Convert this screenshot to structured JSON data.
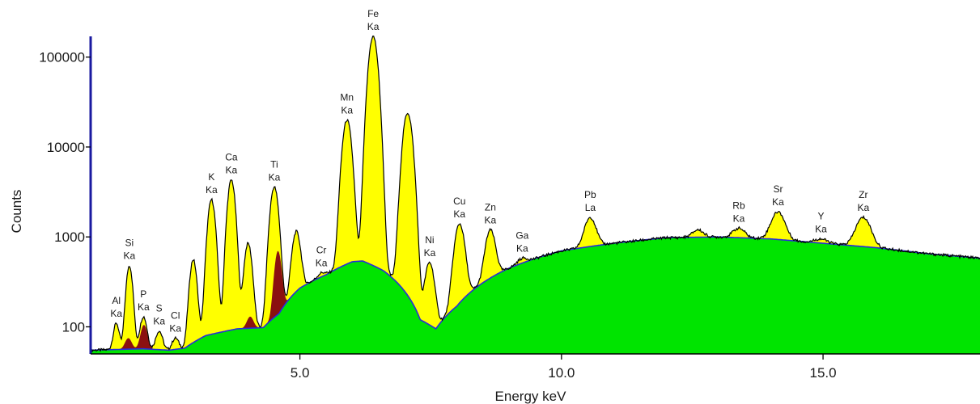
{
  "chart_data": {
    "type": "area",
    "title": "",
    "xlabel": "Energy keV",
    "ylabel": "Counts",
    "xlim": [
      1.0,
      18.0
    ],
    "ylim": [
      50,
      170000
    ],
    "yscale": "log",
    "grid": false,
    "x_ticks": [
      {
        "value": 5.0,
        "label": "5.0"
      },
      {
        "value": 10.0,
        "label": "10.0"
      },
      {
        "value": 15.0,
        "label": "15.0"
      }
    ],
    "y_ticks": [
      {
        "value": 100,
        "label": "100"
      },
      {
        "value": 1000,
        "label": "1000"
      },
      {
        "value": 10000,
        "label": "10000"
      },
      {
        "value": 100000,
        "label": "100000"
      }
    ],
    "colors": {
      "background_fill": "#00e400",
      "peak_fill": "#ffff00",
      "overlap_fill": "#8b1010",
      "spectrum_line": "#000000",
      "background_line": "#2a2adc",
      "axis": "#000000",
      "left_axis_accent": "#1a1aa0"
    },
    "background_points": [
      [
        1.0,
        55
      ],
      [
        1.5,
        56
      ],
      [
        2.0,
        57
      ],
      [
        2.5,
        55
      ],
      [
        2.8,
        58
      ],
      [
        3.2,
        80
      ],
      [
        3.8,
        95
      ],
      [
        4.3,
        98
      ],
      [
        4.6,
        140
      ],
      [
        5.0,
        270
      ],
      [
        5.5,
        380
      ],
      [
        6.0,
        530
      ],
      [
        6.2,
        540
      ],
      [
        6.6,
        420
      ],
      [
        7.0,
        250
      ],
      [
        7.3,
        120
      ],
      [
        7.6,
        95
      ],
      [
        8.0,
        170
      ],
      [
        9.0,
        450
      ],
      [
        10.0,
        700
      ],
      [
        11.0,
        850
      ],
      [
        12.0,
        980
      ],
      [
        13.0,
        1000
      ],
      [
        14.0,
        950
      ],
      [
        15.0,
        850
      ],
      [
        16.0,
        760
      ],
      [
        17.0,
        650
      ],
      [
        18.0,
        580
      ]
    ],
    "peaks": [
      {
        "element": "Al",
        "line": "Ka",
        "energy": 1.49,
        "counts": 110,
        "width": 0.05
      },
      {
        "element": "Si",
        "line": "Ka",
        "energy": 1.74,
        "counts": 480,
        "width": 0.055
      },
      {
        "element": "P",
        "line": "Ka",
        "energy": 2.01,
        "counts": 130,
        "width": 0.06
      },
      {
        "element": "S",
        "line": "Ka",
        "energy": 2.31,
        "counts": 90,
        "width": 0.06
      },
      {
        "element": "Cl",
        "line": "Ka",
        "energy": 2.62,
        "counts": 75,
        "width": 0.06
      },
      {
        "element": "",
        "line": "",
        "energy": 2.96,
        "counts": 560,
        "width": 0.06
      },
      {
        "element": "K",
        "line": "Ka",
        "energy": 3.31,
        "counts": 2600,
        "width": 0.065
      },
      {
        "element": "Ca",
        "line": "Ka",
        "energy": 3.69,
        "counts": 4300,
        "width": 0.065
      },
      {
        "element": "",
        "line": "",
        "energy": 4.01,
        "counts": 850,
        "width": 0.065
      },
      {
        "element": "Ti",
        "line": "Ka",
        "energy": 4.51,
        "counts": 3600,
        "width": 0.07
      },
      {
        "element": "",
        "line": "",
        "energy": 4.93,
        "counts": 1150,
        "width": 0.07
      },
      {
        "element": "Cr",
        "line": "Ka",
        "energy": 5.41,
        "counts": 400,
        "width": 0.07
      },
      {
        "element": "Mn",
        "line": "Ka",
        "energy": 5.9,
        "counts": 20000,
        "width": 0.075
      },
      {
        "element": "Fe",
        "line": "Ka",
        "energy": 6.4,
        "counts": 170000,
        "width": 0.075
      },
      {
        "element": "",
        "line": "",
        "energy": 7.06,
        "counts": 24000,
        "width": 0.08
      },
      {
        "element": "Ni",
        "line": "Ka",
        "energy": 7.48,
        "counts": 520,
        "width": 0.08
      },
      {
        "element": "Cu",
        "line": "Ka",
        "energy": 8.05,
        "counts": 1400,
        "width": 0.085
      },
      {
        "element": "Zn",
        "line": "Ka",
        "energy": 8.64,
        "counts": 1200,
        "width": 0.085
      },
      {
        "element": "Ga",
        "line": "Ka",
        "energy": 9.25,
        "counts": 580,
        "width": 0.09
      },
      {
        "element": "Pb",
        "line": "La",
        "energy": 10.55,
        "counts": 1650,
        "width": 0.1
      },
      {
        "element": "",
        "line": "",
        "energy": 12.61,
        "counts": 1200,
        "width": 0.1
      },
      {
        "element": "Rb",
        "line": "Ka",
        "energy": 13.39,
        "counts": 1250,
        "width": 0.11
      },
      {
        "element": "Sr",
        "line": "Ka",
        "energy": 14.14,
        "counts": 1900,
        "width": 0.12
      },
      {
        "element": "Y",
        "line": "Ka",
        "energy": 14.96,
        "counts": 950,
        "width": 0.12
      },
      {
        "element": "Zr",
        "line": "Ka",
        "energy": 15.77,
        "counts": 1650,
        "width": 0.13
      }
    ],
    "overlap_peaks": [
      {
        "energy": 1.72,
        "counts": 75
      },
      {
        "energy": 2.02,
        "counts": 105
      },
      {
        "energy": 4.05,
        "counts": 130
      },
      {
        "energy": 4.58,
        "counts": 700
      }
    ]
  }
}
